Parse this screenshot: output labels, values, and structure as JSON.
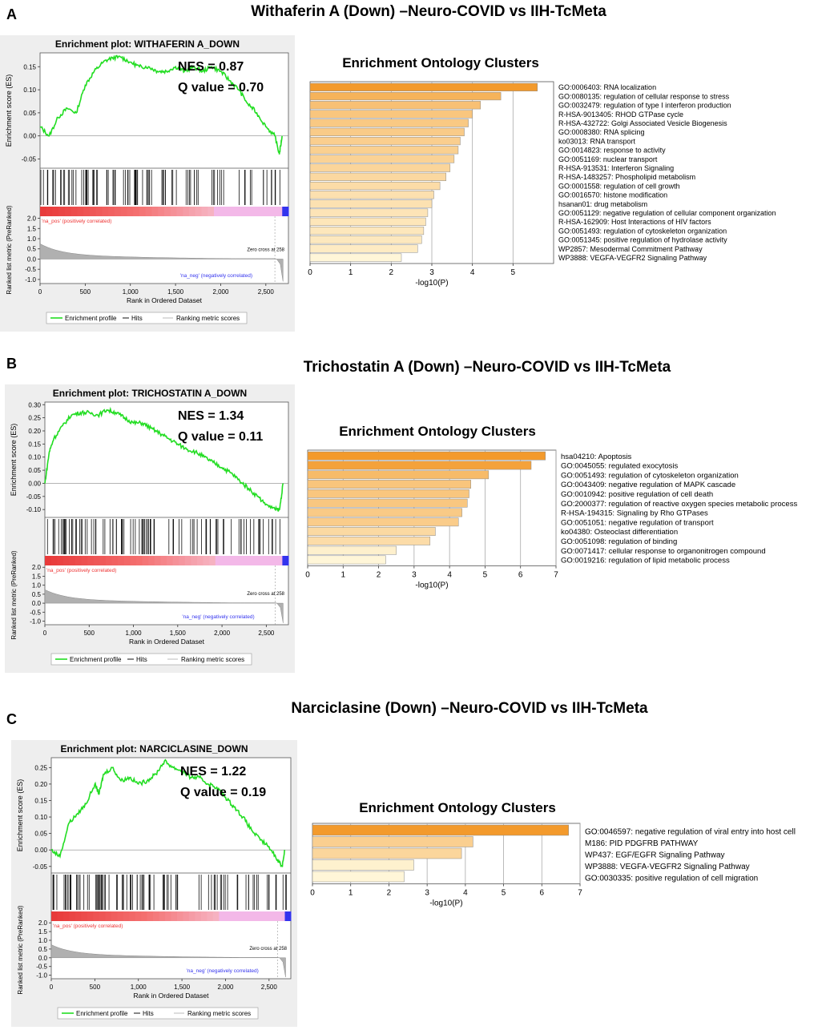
{
  "colors": {
    "es_line": "#22dd22",
    "bar_dark": "#f39a2c",
    "bar_light": "#fff6d8",
    "pos": "#ee3333",
    "neg": "#3333ee"
  },
  "panels": [
    {
      "letter": "A",
      "title": "Withaferin A (Down) –Neuro-COVID vs IIH-TcMeta",
      "gsea": {
        "plot_title": "Enrichment plot: WITHAFERIN A_DOWN",
        "nes_label": "NES = 0.87",
        "q_label": "Q value = 0.70",
        "es_ticks": [
          "0.15",
          "0.10",
          "0.05",
          "0.00",
          "-0.05"
        ],
        "es_ylabel": "Enrichment score (ES)",
        "rank_ticks": [
          "2.0",
          "1.5",
          "1.0",
          "0.5",
          "0.0",
          "-0.5",
          "-1.0"
        ],
        "rank_ylabel": "Ranked list metric (PreRanked)",
        "x_ticks": [
          "0",
          "500",
          "1,000",
          "1,500",
          "2,000",
          "2,500"
        ],
        "xlabel": "Rank in Ordered Dataset",
        "pos_label": "'na_pos' (positively correlated)",
        "neg_label": "'na_neg' (negatively correlated)",
        "zero_cross": "Zero cross at 258",
        "legend": [
          "Enrichment profile",
          "Hits",
          "Ranking metric scores"
        ]
      },
      "enrichment": {
        "title": "Enrichment Ontology Clusters",
        "xlabel": "-log10(P)",
        "x_ticks": [
          "0",
          "1",
          "2",
          "3",
          "4",
          "5"
        ]
      }
    },
    {
      "letter": "B",
      "title": "Trichostatin A (Down) –Neuro-COVID vs IIH-TcMeta",
      "gsea": {
        "plot_title": "Enrichment plot: TRICHOSTATIN A_DOWN",
        "nes_label": "NES = 1.34",
        "q_label": "Q value = 0.11",
        "es_ticks": [
          "0.30",
          "0.25",
          "0.20",
          "0.15",
          "0.10",
          "0.05",
          "0.00",
          "-0.05",
          "-0.10"
        ],
        "es_ylabel": "Enrichment score (ES)",
        "rank_ticks": [
          "2.0",
          "1.5",
          "1.0",
          "0.5",
          "0.0",
          "-0.5",
          "-1.0"
        ],
        "rank_ylabel": "Ranked list metric (PreRanked)",
        "x_ticks": [
          "0",
          "500",
          "1,000",
          "1,500",
          "2,000",
          "2,500"
        ],
        "xlabel": "Rank in Ordered Dataset",
        "pos_label": "'na_pos' (positively correlated)",
        "neg_label": "'na_neg' (negatively correlated)",
        "zero_cross": "Zero cross at 258",
        "legend": [
          "Enrichment profile",
          "Hits",
          "Ranking metric scores"
        ]
      },
      "enrichment": {
        "title": "Enrichment Ontology Clusters",
        "xlabel": "-log10(P)",
        "x_ticks": [
          "0",
          "1",
          "2",
          "3",
          "4",
          "5",
          "6",
          "7"
        ]
      }
    },
    {
      "letter": "C",
      "title": "Narciclasine (Down) –Neuro-COVID vs IIH-TcMeta",
      "gsea": {
        "plot_title": "Enrichment plot: NARCICLASINE_DOWN",
        "nes_label": "NES = 1.22",
        "q_label": "Q value = 0.19",
        "es_ticks": [
          "0.25",
          "0.20",
          "0.15",
          "0.10",
          "0.05",
          "0.00",
          "-0.05"
        ],
        "es_ylabel": "Enrichment score (ES)",
        "rank_ticks": [
          "2.0",
          "1.5",
          "1.0",
          "0.5",
          "0.0",
          "-0.5",
          "-1.0"
        ],
        "rank_ylabel": "Ranked list metric (PreRanked)",
        "x_ticks": [
          "0",
          "500",
          "1,000",
          "1,500",
          "2,000",
          "2,500"
        ],
        "xlabel": "Rank in Ordered Dataset",
        "pos_label": "'na_pos' (positively correlated)",
        "neg_label": "'na_neg' (negatively correlated)",
        "zero_cross": "Zero cross at 258",
        "legend": [
          "Enrichment profile",
          "Hits",
          "Ranking metric scores"
        ]
      },
      "enrichment": {
        "title": "Enrichment  Ontology Clusters",
        "xlabel": "-log10(P)",
        "x_ticks": [
          "0",
          "1",
          "2",
          "3",
          "4",
          "5",
          "6",
          "7"
        ]
      }
    }
  ],
  "chart_data": [
    {
      "type": "line",
      "title": "Enrichment plot: WITHAFERIN A_DOWN",
      "xlabel": "Rank in Ordered Dataset",
      "ylabel": "Enrichment score (ES)",
      "xlim": [
        0,
        2750
      ],
      "ylim": [
        -0.07,
        0.18
      ],
      "x": [
        0,
        100,
        200,
        300,
        400,
        500,
        600,
        700,
        800,
        900,
        1000,
        1100,
        1200,
        1300,
        1400,
        1500,
        1600,
        1700,
        1800,
        1900,
        2000,
        2100,
        2200,
        2300,
        2400,
        2500,
        2600,
        2650,
        2680
      ],
      "y": [
        0.02,
        0.0,
        0.04,
        0.06,
        0.05,
        0.11,
        0.14,
        0.16,
        0.17,
        0.17,
        0.16,
        0.15,
        0.15,
        0.14,
        0.14,
        0.15,
        0.14,
        0.15,
        0.14,
        0.15,
        0.14,
        0.12,
        0.1,
        0.07,
        0.05,
        0.02,
        0.0,
        -0.04,
        0.0
      ]
    },
    {
      "type": "bar",
      "title": "Enrichment Ontology Clusters",
      "xlabel": "-log10(P)",
      "xlim": [
        0,
        6
      ],
      "categories": [
        "GO:0006403: RNA localization",
        "GO:0080135: regulation of cellular response to stress",
        "GO:0032479: regulation of type I interferon production",
        "R-HSA-9013405: RHOD GTPase cycle",
        "R-HSA-432722: Golgi Associated Vesicle Biogenesis",
        "GO:0008380: RNA splicing",
        "ko03013: RNA transport",
        "GO:0014823: response to activity",
        "GO:0051169: nuclear transport",
        "R-HSA-913531: Interferon Signaling",
        "R-HSA-1483257: Phospholipid metabolism",
        "GO:0001558: regulation of cell growth",
        "GO:0016570: histone modification",
        "hsanan01: drug metabolism",
        "GO:0051129: negative regulation of cellular component organization",
        "R-HSA-162909: Host Interactions of HIV factors",
        "GO:0051493: regulation of cytoskeleton organization",
        "GO:0051345: positive regulation of hydrolase activity",
        "WP2857: Mesodermal Commitment Pathway",
        "WP3888: VEGFA-VEGFR2 Signaling Pathway"
      ],
      "values": [
        5.6,
        4.7,
        4.2,
        4.0,
        3.9,
        3.8,
        3.7,
        3.65,
        3.55,
        3.45,
        3.35,
        3.2,
        3.05,
        3.0,
        2.9,
        2.85,
        2.8,
        2.75,
        2.65,
        2.25
      ]
    },
    {
      "type": "line",
      "title": "Enrichment plot: TRICHOSTATIN A_DOWN",
      "xlabel": "Rank in Ordered Dataset",
      "ylabel": "Enrichment score (ES)",
      "xlim": [
        0,
        2750
      ],
      "ylim": [
        -0.13,
        0.31
      ],
      "x": [
        0,
        50,
        100,
        200,
        300,
        400,
        500,
        600,
        700,
        800,
        900,
        1000,
        1100,
        1200,
        1300,
        1400,
        1500,
        1600,
        1700,
        1800,
        1900,
        2000,
        2100,
        2200,
        2300,
        2400,
        2500,
        2600,
        2650,
        2690
      ],
      "y": [
        0.0,
        0.12,
        0.17,
        0.22,
        0.26,
        0.27,
        0.27,
        0.26,
        0.28,
        0.27,
        0.25,
        0.23,
        0.23,
        0.21,
        0.19,
        0.17,
        0.15,
        0.13,
        0.12,
        0.1,
        0.08,
        0.06,
        0.04,
        0.01,
        -0.02,
        -0.05,
        -0.08,
        -0.1,
        -0.1,
        0.0
      ]
    },
    {
      "type": "bar",
      "title": "Enrichment Ontology Clusters",
      "xlabel": "-log10(P)",
      "xlim": [
        0,
        7
      ],
      "categories": [
        "hsa04210: Apoptosis",
        "GO:0045055: regulated exocytosis",
        "GO:0051493: regulation of cytoskeleton organization",
        "GO:0043409: negative regulation of MAPK cascade",
        "GO:0010942: positive regulation of cell death",
        "GO:2000377: regulation of reactive oxygen species metabolic process",
        "R-HSA-194315: Signaling by Rho GTPases",
        "GO:0051051: negative regulation of transport",
        "ko04380: Osteoclast differentiation",
        "GO:0051098: regulation of binding",
        "GO:0071417: cellular response to organonitrogen compound",
        "GO:0019216: regulation of lipid metabolic process"
      ],
      "values": [
        6.7,
        6.3,
        5.1,
        4.6,
        4.55,
        4.5,
        4.35,
        4.25,
        3.6,
        3.45,
        2.5,
        2.2
      ]
    },
    {
      "type": "line",
      "title": "Enrichment plot: NARCICLASINE_DOWN",
      "xlabel": "Rank in Ordered Dataset",
      "ylabel": "Enrichment score (ES)",
      "xlim": [
        0,
        2750
      ],
      "ylim": [
        -0.07,
        0.28
      ],
      "x": [
        0,
        100,
        200,
        300,
        400,
        500,
        550,
        600,
        700,
        800,
        900,
        1000,
        1100,
        1200,
        1300,
        1400,
        1500,
        1600,
        1700,
        1800,
        1900,
        2000,
        2100,
        2200,
        2300,
        2400,
        2500,
        2600,
        2650,
        2680
      ],
      "y": [
        0.0,
        -0.02,
        0.08,
        0.11,
        0.14,
        0.2,
        0.17,
        0.23,
        0.25,
        0.21,
        0.22,
        0.2,
        0.21,
        0.23,
        0.27,
        0.25,
        0.24,
        0.22,
        0.22,
        0.2,
        0.19,
        0.16,
        0.13,
        0.1,
        0.06,
        0.03,
        0.01,
        -0.03,
        -0.05,
        0.0
      ]
    },
    {
      "type": "bar",
      "title": "Enrichment  Ontology Clusters",
      "xlabel": "-log10(P)",
      "xlim": [
        0,
        7
      ],
      "categories": [
        "GO:0046597: negative regulation of viral entry into host cell",
        "M186: PID PDGFRB PATHWAY",
        "WP437: EGF/EGFR Signaling Pathway",
        "WP3888: VEGFA-VEGFR2 Signaling Pathway",
        "GO:0030335: positive regulation of cell migration"
      ],
      "values": [
        6.7,
        4.2,
        3.9,
        2.65,
        2.4
      ]
    }
  ]
}
